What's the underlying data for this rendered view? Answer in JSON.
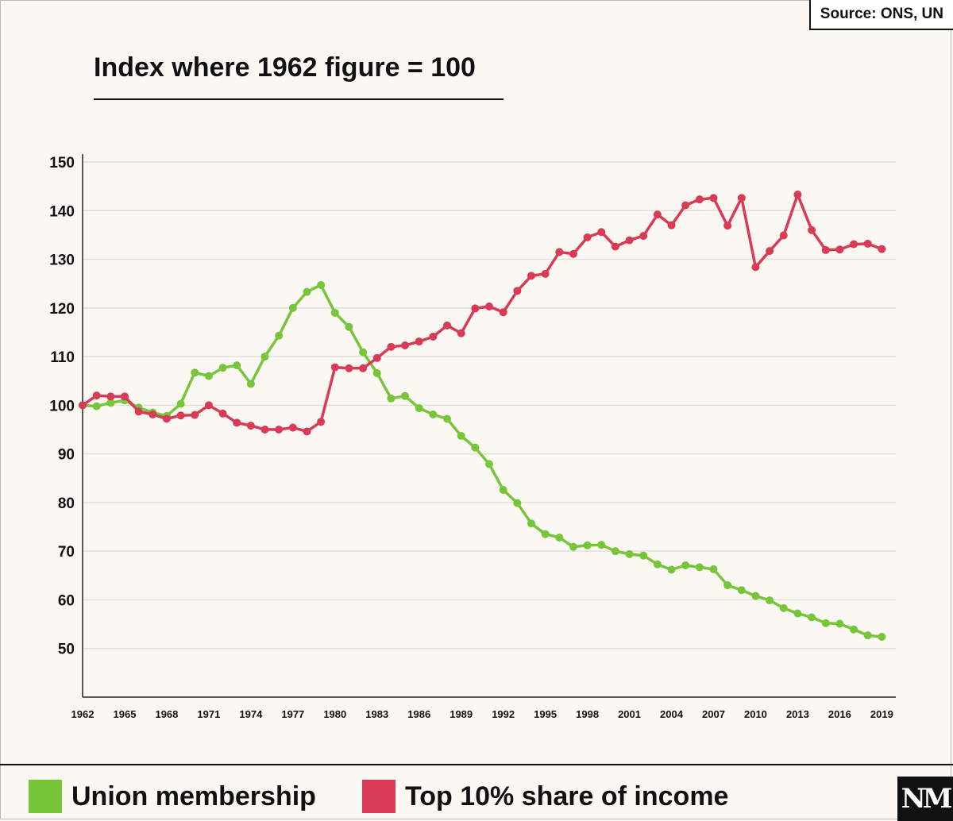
{
  "source": "Source: ONS, UN",
  "title": "Index where 1962 figure = 100",
  "logo_text": "NM",
  "legend": [
    {
      "label": "Union membership",
      "color": "#77c63a"
    },
    {
      "label": "Top 10% share of income",
      "color": "#d93a55"
    }
  ],
  "chart_data": {
    "type": "line",
    "title": "Index where 1962 figure = 100",
    "xlabel": "",
    "ylabel": "",
    "ylim": [
      40,
      150
    ],
    "yticks": [
      50,
      60,
      70,
      80,
      90,
      100,
      110,
      120,
      130,
      140,
      150
    ],
    "xticks": [
      1962,
      1965,
      1968,
      1971,
      1974,
      1977,
      1980,
      1983,
      1986,
      1989,
      1992,
      1995,
      1998,
      2001,
      2004,
      2007,
      2010,
      2013,
      2016,
      2019
    ],
    "x": [
      1962,
      1963,
      1964,
      1965,
      1966,
      1967,
      1968,
      1969,
      1970,
      1971,
      1972,
      1973,
      1974,
      1975,
      1976,
      1977,
      1978,
      1979,
      1980,
      1981,
      1982,
      1983,
      1984,
      1985,
      1986,
      1987,
      1988,
      1989,
      1990,
      1991,
      1992,
      1993,
      1994,
      1995,
      1996,
      1997,
      1998,
      1999,
      2000,
      2001,
      2002,
      2003,
      2004,
      2005,
      2006,
      2007,
      2008,
      2009,
      2010,
      2011,
      2012,
      2013,
      2014,
      2015,
      2016,
      2017,
      2018,
      2019,
      2020
    ],
    "grid": true,
    "legend_position": "bottom",
    "series": [
      {
        "name": "Union membership",
        "color": "#77c63a",
        "values": [
          100,
          99.8,
          100.5,
          101,
          99.5,
          98.5,
          97.8,
          100.3,
          106.7,
          106,
          107.7,
          108.2,
          104.4,
          110,
          114.3,
          120,
          123.3,
          124.7,
          119,
          116.1,
          110.9,
          106.6,
          101.4,
          101.9,
          99.4,
          98.1,
          97.2,
          93.7,
          91.3,
          87.9,
          82.6,
          79.9,
          75.7,
          73.5,
          72.8,
          70.9,
          71.2,
          71.3,
          70,
          69.4,
          69.1,
          67.3,
          66.2,
          67.1,
          66.7,
          66.3,
          63,
          62,
          60.8,
          59.9,
          58.3,
          57.2,
          56.4,
          55.2,
          55.1,
          53.9,
          52.7,
          52.4,
          null
        ]
      },
      {
        "name": "Top 10% share of income",
        "color": "#d93a55",
        "values": [
          100,
          102,
          101.8,
          101.8,
          98.7,
          98.1,
          97.2,
          97.9,
          98,
          100,
          98.3,
          96.4,
          95.8,
          95,
          95,
          95.4,
          94.6,
          96.6,
          107.8,
          107.6,
          107.6,
          109.7,
          112,
          112.3,
          113.1,
          114.1,
          116.4,
          114.8,
          119.9,
          120.3,
          119.1,
          123.5,
          126.6,
          127,
          131.5,
          131.1,
          134.5,
          135.6,
          132.6,
          133.9,
          134.8,
          139.2,
          137,
          141.1,
          142.3,
          142.6,
          136.9,
          142.6,
          128.4,
          131.7,
          134.9,
          143.3,
          136,
          131.9,
          132,
          133.1,
          133.2,
          132.1,
          null
        ]
      }
    ]
  }
}
